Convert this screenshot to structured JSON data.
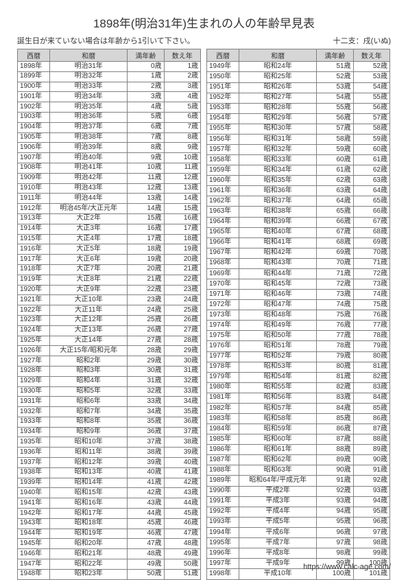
{
  "title": "1898年(明治31年)生まれの人の年齢早見表",
  "note": "誕生日が来ていない場合は年齢から1引いて下さい。",
  "zodiac": "十二支：戌(いぬ)",
  "footer_url": "https://www.calc-age.com/",
  "columns": [
    "西暦",
    "和暦",
    "満年齢",
    "数え年"
  ],
  "left_rows": [
    [
      "1898年",
      "明治31年",
      "0歳",
      "1歳"
    ],
    [
      "1899年",
      "明治32年",
      "1歳",
      "2歳"
    ],
    [
      "1900年",
      "明治33年",
      "2歳",
      "3歳"
    ],
    [
      "1901年",
      "明治34年",
      "3歳",
      "4歳"
    ],
    [
      "1902年",
      "明治35年",
      "4歳",
      "5歳"
    ],
    [
      "1903年",
      "明治36年",
      "5歳",
      "6歳"
    ],
    [
      "1904年",
      "明治37年",
      "6歳",
      "7歳"
    ],
    [
      "1905年",
      "明治38年",
      "7歳",
      "8歳"
    ],
    [
      "1906年",
      "明治39年",
      "8歳",
      "9歳"
    ],
    [
      "1907年",
      "明治40年",
      "9歳",
      "10歳"
    ],
    [
      "1908年",
      "明治41年",
      "10歳",
      "11歳"
    ],
    [
      "1909年",
      "明治42年",
      "11歳",
      "12歳"
    ],
    [
      "1910年",
      "明治43年",
      "12歳",
      "13歳"
    ],
    [
      "1911年",
      "明治44年",
      "13歳",
      "14歳"
    ],
    [
      "1912年",
      "明治45年/大正元年",
      "14歳",
      "15歳"
    ],
    [
      "1913年",
      "大正2年",
      "15歳",
      "16歳"
    ],
    [
      "1914年",
      "大正3年",
      "16歳",
      "17歳"
    ],
    [
      "1915年",
      "大正4年",
      "17歳",
      "18歳"
    ],
    [
      "1916年",
      "大正5年",
      "18歳",
      "19歳"
    ],
    [
      "1917年",
      "大正6年",
      "19歳",
      "20歳"
    ],
    [
      "1918年",
      "大正7年",
      "20歳",
      "21歳"
    ],
    [
      "1919年",
      "大正8年",
      "21歳",
      "22歳"
    ],
    [
      "1920年",
      "大正9年",
      "22歳",
      "23歳"
    ],
    [
      "1921年",
      "大正10年",
      "23歳",
      "24歳"
    ],
    [
      "1922年",
      "大正11年",
      "24歳",
      "25歳"
    ],
    [
      "1923年",
      "大正12年",
      "25歳",
      "26歳"
    ],
    [
      "1924年",
      "大正13年",
      "26歳",
      "27歳"
    ],
    [
      "1925年",
      "大正14年",
      "27歳",
      "28歳"
    ],
    [
      "1926年",
      "大正15年/昭和元年",
      "28歳",
      "29歳"
    ],
    [
      "1927年",
      "昭和2年",
      "29歳",
      "30歳"
    ],
    [
      "1928年",
      "昭和3年",
      "30歳",
      "31歳"
    ],
    [
      "1929年",
      "昭和4年",
      "31歳",
      "32歳"
    ],
    [
      "1930年",
      "昭和5年",
      "32歳",
      "33歳"
    ],
    [
      "1931年",
      "昭和6年",
      "33歳",
      "34歳"
    ],
    [
      "1932年",
      "昭和7年",
      "34歳",
      "35歳"
    ],
    [
      "1933年",
      "昭和8年",
      "35歳",
      "36歳"
    ],
    [
      "1934年",
      "昭和9年",
      "36歳",
      "37歳"
    ],
    [
      "1935年",
      "昭和10年",
      "37歳",
      "38歳"
    ],
    [
      "1936年",
      "昭和11年",
      "38歳",
      "39歳"
    ],
    [
      "1937年",
      "昭和12年",
      "39歳",
      "40歳"
    ],
    [
      "1938年",
      "昭和13年",
      "40歳",
      "41歳"
    ],
    [
      "1939年",
      "昭和14年",
      "41歳",
      "42歳"
    ],
    [
      "1940年",
      "昭和15年",
      "42歳",
      "43歳"
    ],
    [
      "1941年",
      "昭和16年",
      "43歳",
      "44歳"
    ],
    [
      "1942年",
      "昭和17年",
      "44歳",
      "45歳"
    ],
    [
      "1943年",
      "昭和18年",
      "45歳",
      "46歳"
    ],
    [
      "1944年",
      "昭和19年",
      "46歳",
      "47歳"
    ],
    [
      "1945年",
      "昭和20年",
      "47歳",
      "48歳"
    ],
    [
      "1946年",
      "昭和21年",
      "48歳",
      "49歳"
    ],
    [
      "1947年",
      "昭和22年",
      "49歳",
      "50歳"
    ],
    [
      "1948年",
      "昭和23年",
      "50歳",
      "51歳"
    ]
  ],
  "right_rows": [
    [
      "1949年",
      "昭和24年",
      "51歳",
      "52歳"
    ],
    [
      "1950年",
      "昭和25年",
      "52歳",
      "53歳"
    ],
    [
      "1951年",
      "昭和26年",
      "53歳",
      "54歳"
    ],
    [
      "1952年",
      "昭和27年",
      "54歳",
      "55歳"
    ],
    [
      "1953年",
      "昭和28年",
      "55歳",
      "56歳"
    ],
    [
      "1954年",
      "昭和29年",
      "56歳",
      "57歳"
    ],
    [
      "1955年",
      "昭和30年",
      "57歳",
      "58歳"
    ],
    [
      "1956年",
      "昭和31年",
      "58歳",
      "59歳"
    ],
    [
      "1957年",
      "昭和32年",
      "59歳",
      "60歳"
    ],
    [
      "1958年",
      "昭和33年",
      "60歳",
      "61歳"
    ],
    [
      "1959年",
      "昭和34年",
      "61歳",
      "62歳"
    ],
    [
      "1960年",
      "昭和35年",
      "62歳",
      "63歳"
    ],
    [
      "1961年",
      "昭和36年",
      "63歳",
      "64歳"
    ],
    [
      "1962年",
      "昭和37年",
      "64歳",
      "65歳"
    ],
    [
      "1963年",
      "昭和38年",
      "65歳",
      "66歳"
    ],
    [
      "1964年",
      "昭和39年",
      "66歳",
      "67歳"
    ],
    [
      "1965年",
      "昭和40年",
      "67歳",
      "68歳"
    ],
    [
      "1966年",
      "昭和41年",
      "68歳",
      "69歳"
    ],
    [
      "1967年",
      "昭和42年",
      "69歳",
      "70歳"
    ],
    [
      "1968年",
      "昭和43年",
      "70歳",
      "71歳"
    ],
    [
      "1969年",
      "昭和44年",
      "71歳",
      "72歳"
    ],
    [
      "1970年",
      "昭和45年",
      "72歳",
      "73歳"
    ],
    [
      "1971年",
      "昭和46年",
      "73歳",
      "74歳"
    ],
    [
      "1972年",
      "昭和47年",
      "74歳",
      "75歳"
    ],
    [
      "1973年",
      "昭和48年",
      "75歳",
      "76歳"
    ],
    [
      "1974年",
      "昭和49年",
      "76歳",
      "77歳"
    ],
    [
      "1975年",
      "昭和50年",
      "77歳",
      "78歳"
    ],
    [
      "1976年",
      "昭和51年",
      "78歳",
      "79歳"
    ],
    [
      "1977年",
      "昭和52年",
      "79歳",
      "80歳"
    ],
    [
      "1978年",
      "昭和53年",
      "80歳",
      "81歳"
    ],
    [
      "1979年",
      "昭和54年",
      "81歳",
      "82歳"
    ],
    [
      "1980年",
      "昭和55年",
      "82歳",
      "83歳"
    ],
    [
      "1981年",
      "昭和56年",
      "83歳",
      "84歳"
    ],
    [
      "1982年",
      "昭和57年",
      "84歳",
      "85歳"
    ],
    [
      "1983年",
      "昭和58年",
      "85歳",
      "86歳"
    ],
    [
      "1984年",
      "昭和59年",
      "86歳",
      "87歳"
    ],
    [
      "1985年",
      "昭和60年",
      "87歳",
      "88歳"
    ],
    [
      "1986年",
      "昭和61年",
      "88歳",
      "89歳"
    ],
    [
      "1987年",
      "昭和62年",
      "89歳",
      "90歳"
    ],
    [
      "1988年",
      "昭和63年",
      "90歳",
      "91歳"
    ],
    [
      "1989年",
      "昭和64年/平成元年",
      "91歳",
      "92歳"
    ],
    [
      "1990年",
      "平成2年",
      "92歳",
      "93歳"
    ],
    [
      "1991年",
      "平成3年",
      "93歳",
      "94歳"
    ],
    [
      "1992年",
      "平成4年",
      "94歳",
      "95歳"
    ],
    [
      "1993年",
      "平成5年",
      "95歳",
      "96歳"
    ],
    [
      "1994年",
      "平成6年",
      "96歳",
      "97歳"
    ],
    [
      "1995年",
      "平成7年",
      "97歳",
      "98歳"
    ],
    [
      "1996年",
      "平成8年",
      "98歳",
      "99歳"
    ],
    [
      "1997年",
      "平成9年",
      "99歳",
      "100歳"
    ],
    [
      "1998年",
      "平成10年",
      "100歳",
      "101歳"
    ]
  ]
}
